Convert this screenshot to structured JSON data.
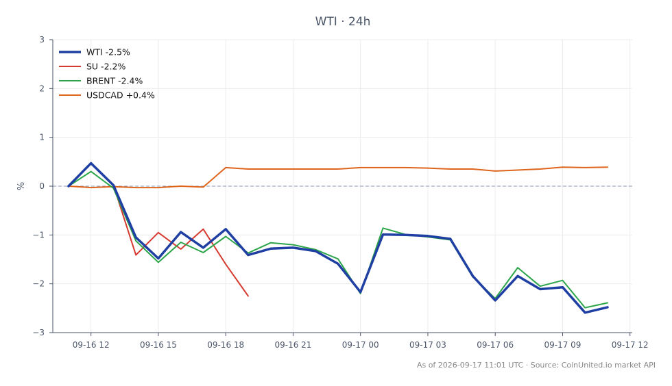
{
  "chart_data": {
    "type": "line",
    "title": "WTI · 24h",
    "xlabel": "",
    "ylabel": "%",
    "ylim": [
      -3,
      3
    ],
    "yticks": [
      3,
      2,
      1,
      0,
      -1,
      -2,
      -3
    ],
    "yticklabels": [
      "3",
      "2",
      "1",
      "0",
      "−1",
      "−2",
      "−3"
    ],
    "xlim": [
      "09-16 10:18",
      "09-17 12:06"
    ],
    "xticks": [
      "09-16 12:00",
      "09-16 15:00",
      "09-16 18:00",
      "09-16 21:00",
      "09-17 00:00",
      "09-17 03:00",
      "09-17 06:00",
      "09-17 09:00",
      "09-17 12:00"
    ],
    "xticklabels": [
      "09-16 12",
      "09-16 15",
      "09-16 18",
      "09-16 21",
      "09-17 00",
      "09-17 03",
      "09-17 06",
      "09-17 09",
      "09-17 12"
    ],
    "x": [
      "09-16 11:00",
      "09-16 12:00",
      "09-16 13:00",
      "09-16 14:00",
      "09-16 15:00",
      "09-16 16:00",
      "09-16 17:00",
      "09-16 18:00",
      "09-16 19:00",
      "09-16 20:00",
      "09-16 21:00",
      "09-16 22:00",
      "09-16 23:00",
      "09-17 00:00",
      "09-17 01:00",
      "09-17 02:00",
      "09-17 03:00",
      "09-17 04:00",
      "09-17 05:00",
      "09-17 06:00",
      "09-17 07:00",
      "09-17 08:00",
      "09-17 09:00",
      "09-17 10:00",
      "09-17 11:00"
    ],
    "grid": true,
    "reference_line": 0,
    "legend_position": "top-left",
    "series": [
      {
        "name": "WTI -2.5%",
        "color": "#1f3fa3",
        "values": [
          0,
          0.47,
          0.02,
          -1.05,
          -1.48,
          -0.94,
          -1.26,
          -0.88,
          -1.41,
          -1.28,
          -1.26,
          -1.33,
          -1.59,
          -2.17,
          -0.99,
          -1.0,
          -1.02,
          -1.08,
          -1.84,
          -2.34,
          -1.84,
          -2.11,
          -2.07,
          -2.59,
          -2.48
        ]
      },
      {
        "name": "SU -2.2%",
        "color": "#d63a2f",
        "values": [
          0,
          0.47,
          0.02,
          -1.41,
          -0.95,
          -1.29,
          -0.88,
          -1.6,
          -2.25,
          null,
          null,
          null,
          null,
          null,
          null,
          null,
          null,
          null,
          null,
          null,
          null,
          null,
          null,
          null,
          null
        ]
      },
      {
        "name": "BRENT -2.4%",
        "color": "#2ca54a",
        "values": [
          0,
          0.3,
          -0.04,
          -1.12,
          -1.56,
          -1.15,
          -1.36,
          -1.03,
          -1.37,
          -1.16,
          -1.2,
          -1.3,
          -1.49,
          -2.2,
          -0.86,
          -0.99,
          -1.04,
          -1.1,
          -1.86,
          -2.3,
          -1.67,
          -2.05,
          -1.93,
          -2.49,
          -2.39
        ]
      },
      {
        "name": "USDCAD +0.4%",
        "color": "#e0651c",
        "values": [
          0,
          -0.03,
          -0.01,
          -0.03,
          -0.03,
          0.0,
          -0.02,
          0.38,
          0.35,
          0.35,
          0.35,
          0.35,
          0.35,
          0.38,
          0.38,
          0.38,
          0.37,
          0.35,
          0.35,
          0.31,
          0.33,
          0.35,
          0.39,
          0.38,
          0.39
        ]
      }
    ],
    "footer": "As of 2026-09-17 11:01 UTC · Source: CoinUnited.io market API"
  }
}
